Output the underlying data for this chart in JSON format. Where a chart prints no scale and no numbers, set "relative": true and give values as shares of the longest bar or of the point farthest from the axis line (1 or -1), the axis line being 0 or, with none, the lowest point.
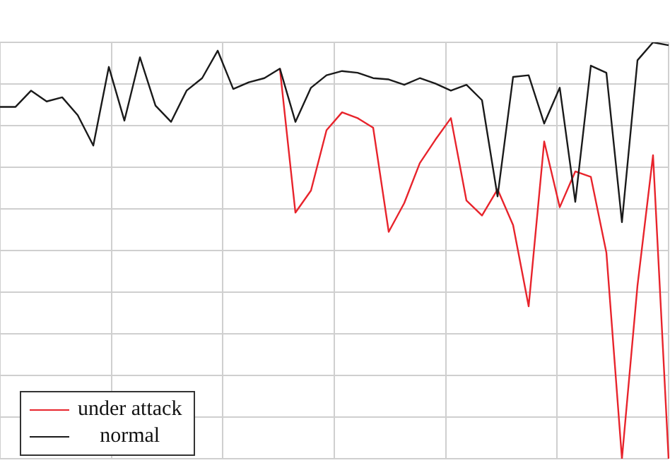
{
  "chart_data": {
    "type": "line",
    "relative": true,
    "categories": [
      null,
      null,
      null,
      null,
      null,
      null,
      null,
      null,
      null,
      null,
      null,
      null,
      null,
      null,
      null,
      null,
      null,
      null,
      null,
      null,
      null,
      null,
      null,
      null,
      null,
      null,
      null,
      null,
      null,
      null,
      null,
      null,
      null,
      null,
      null,
      null,
      null,
      null,
      null,
      null,
      null,
      null,
      null,
      null
    ],
    "series": [
      {
        "name": "under attack",
        "color": "#e8242c",
        "values": [
          null,
          null,
          null,
          null,
          null,
          null,
          null,
          null,
          null,
          null,
          null,
          null,
          null,
          null,
          null,
          null,
          null,
          null,
          0.937,
          0.591,
          0.644,
          0.789,
          0.832,
          0.818,
          0.795,
          0.545,
          0.614,
          0.71,
          0.766,
          0.818,
          0.62,
          0.584,
          0.647,
          0.561,
          0.366,
          0.762,
          0.604,
          0.69,
          0.677,
          0.495,
          0,
          0.416,
          0.729,
          0
        ]
      },
      {
        "name": "normal",
        "color": "#1a1a1a",
        "values": [
          0.845,
          0.845,
          0.884,
          0.858,
          0.868,
          0.825,
          0.752,
          0.941,
          0.812,
          0.964,
          0.848,
          0.809,
          0.884,
          0.914,
          0.98,
          0.888,
          0.904,
          0.914,
          0.937,
          0.809,
          0.891,
          0.921,
          0.931,
          0.927,
          0.914,
          0.911,
          0.898,
          0.914,
          0.901,
          0.884,
          0.898,
          0.861,
          0.63,
          0.917,
          0.921,
          0.805,
          0.891,
          0.617,
          0.944,
          0.927,
          0.568,
          0.957,
          1,
          0.993
        ]
      }
    ],
    "grid": true,
    "legend": "bottom left",
    "tick_labels": false,
    "marker": "none",
    "line_style": "solid"
  }
}
